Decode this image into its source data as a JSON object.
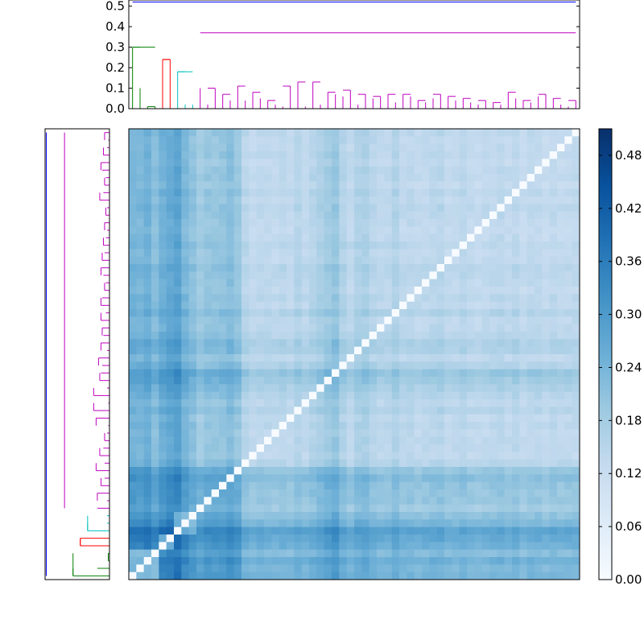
{
  "chart_data": {
    "type": "heatmap",
    "title": "",
    "xlabel": "",
    "ylabel": "",
    "n": 60,
    "colormap": "Blues",
    "value_range": [
      0.0,
      0.51
    ],
    "cluster_sizes": [
      {
        "name": "green",
        "size": 4
      },
      {
        "name": "red",
        "size": 2
      },
      {
        "name": "cyan",
        "size": 3
      },
      {
        "name": "magenta",
        "size": 51
      }
    ],
    "row_means": [
      0.34,
      0.33,
      0.36,
      0.3,
      0.36,
      0.39,
      0.42,
      0.33,
      0.28,
      0.23,
      0.26,
      0.26,
      0.27,
      0.3,
      0.26,
      0.16,
      0.13,
      0.14,
      0.14,
      0.13,
      0.15,
      0.13,
      0.17,
      0.14,
      0.17,
      0.2,
      0.23,
      0.26,
      0.18,
      0.14,
      0.19,
      0.2,
      0.16,
      0.14,
      0.14,
      0.18,
      0.14,
      0.15,
      0.13,
      0.14,
      0.15,
      0.16,
      0.13,
      0.13,
      0.15,
      0.13,
      0.12,
      0.13,
      0.14,
      0.15,
      0.13,
      0.15,
      0.12,
      0.14,
      0.14,
      0.12,
      0.14,
      0.13,
      0.13,
      0.14
    ],
    "dendrogram": {
      "leaf_heights_top": [
        0.3,
        0.1,
        0.01,
        0.01,
        0.24,
        0.24,
        0.18,
        0.02,
        0.02,
        0.1,
        0.02,
        0.1,
        0.07,
        0.04,
        0.11,
        0.04,
        0.08,
        0.05,
        0.04,
        0.02,
        0.01,
        0.11,
        0.13,
        0.01,
        0.13,
        0.02,
        0.08,
        0.07,
        0.06,
        0.09,
        0.02,
        0.07,
        0.05,
        0.06,
        0.07,
        0.03,
        0.07,
        0.06,
        0.04,
        0.03,
        0.05,
        0.07,
        0.06,
        0.04,
        0.05,
        0.03,
        0.02,
        0.04,
        0.03,
        0.02,
        0.08,
        0.05,
        0.04,
        0.03,
        0.06,
        0.07,
        0.05,
        0.02,
        0.01,
        0.04
      ],
      "links": [
        {
          "color": "#008000",
          "height": 0.3,
          "span": [
            0,
            3
          ]
        },
        {
          "color": "#ff0000",
          "height": 0.24,
          "span": [
            4,
            5
          ]
        },
        {
          "color": "#00bfbf",
          "height": 0.18,
          "span": [
            6,
            8
          ]
        },
        {
          "color": "#bf00bf",
          "height": 0.37,
          "span": [
            9,
            59
          ]
        },
        {
          "color": "#0000ff",
          "height": 0.52,
          "span": [
            0,
            59
          ]
        }
      ]
    },
    "top_axis": {
      "ticks": [
        0.0,
        0.1,
        0.2,
        0.3,
        0.4,
        0.5
      ],
      "tick_labels": [
        "0.0",
        "0.1",
        "0.2",
        "0.3",
        "0.4",
        "0.5"
      ],
      "ylim": [
        0,
        0.53
      ]
    },
    "colorbar": {
      "ticks": [
        0.0,
        0.06,
        0.12,
        0.18,
        0.24,
        0.3,
        0.36,
        0.42,
        0.48
      ],
      "tick_labels": [
        "0.00",
        "0.06",
        "0.12",
        "0.18",
        "0.24",
        "0.30",
        "0.36",
        "0.42",
        "0.48"
      ]
    }
  }
}
